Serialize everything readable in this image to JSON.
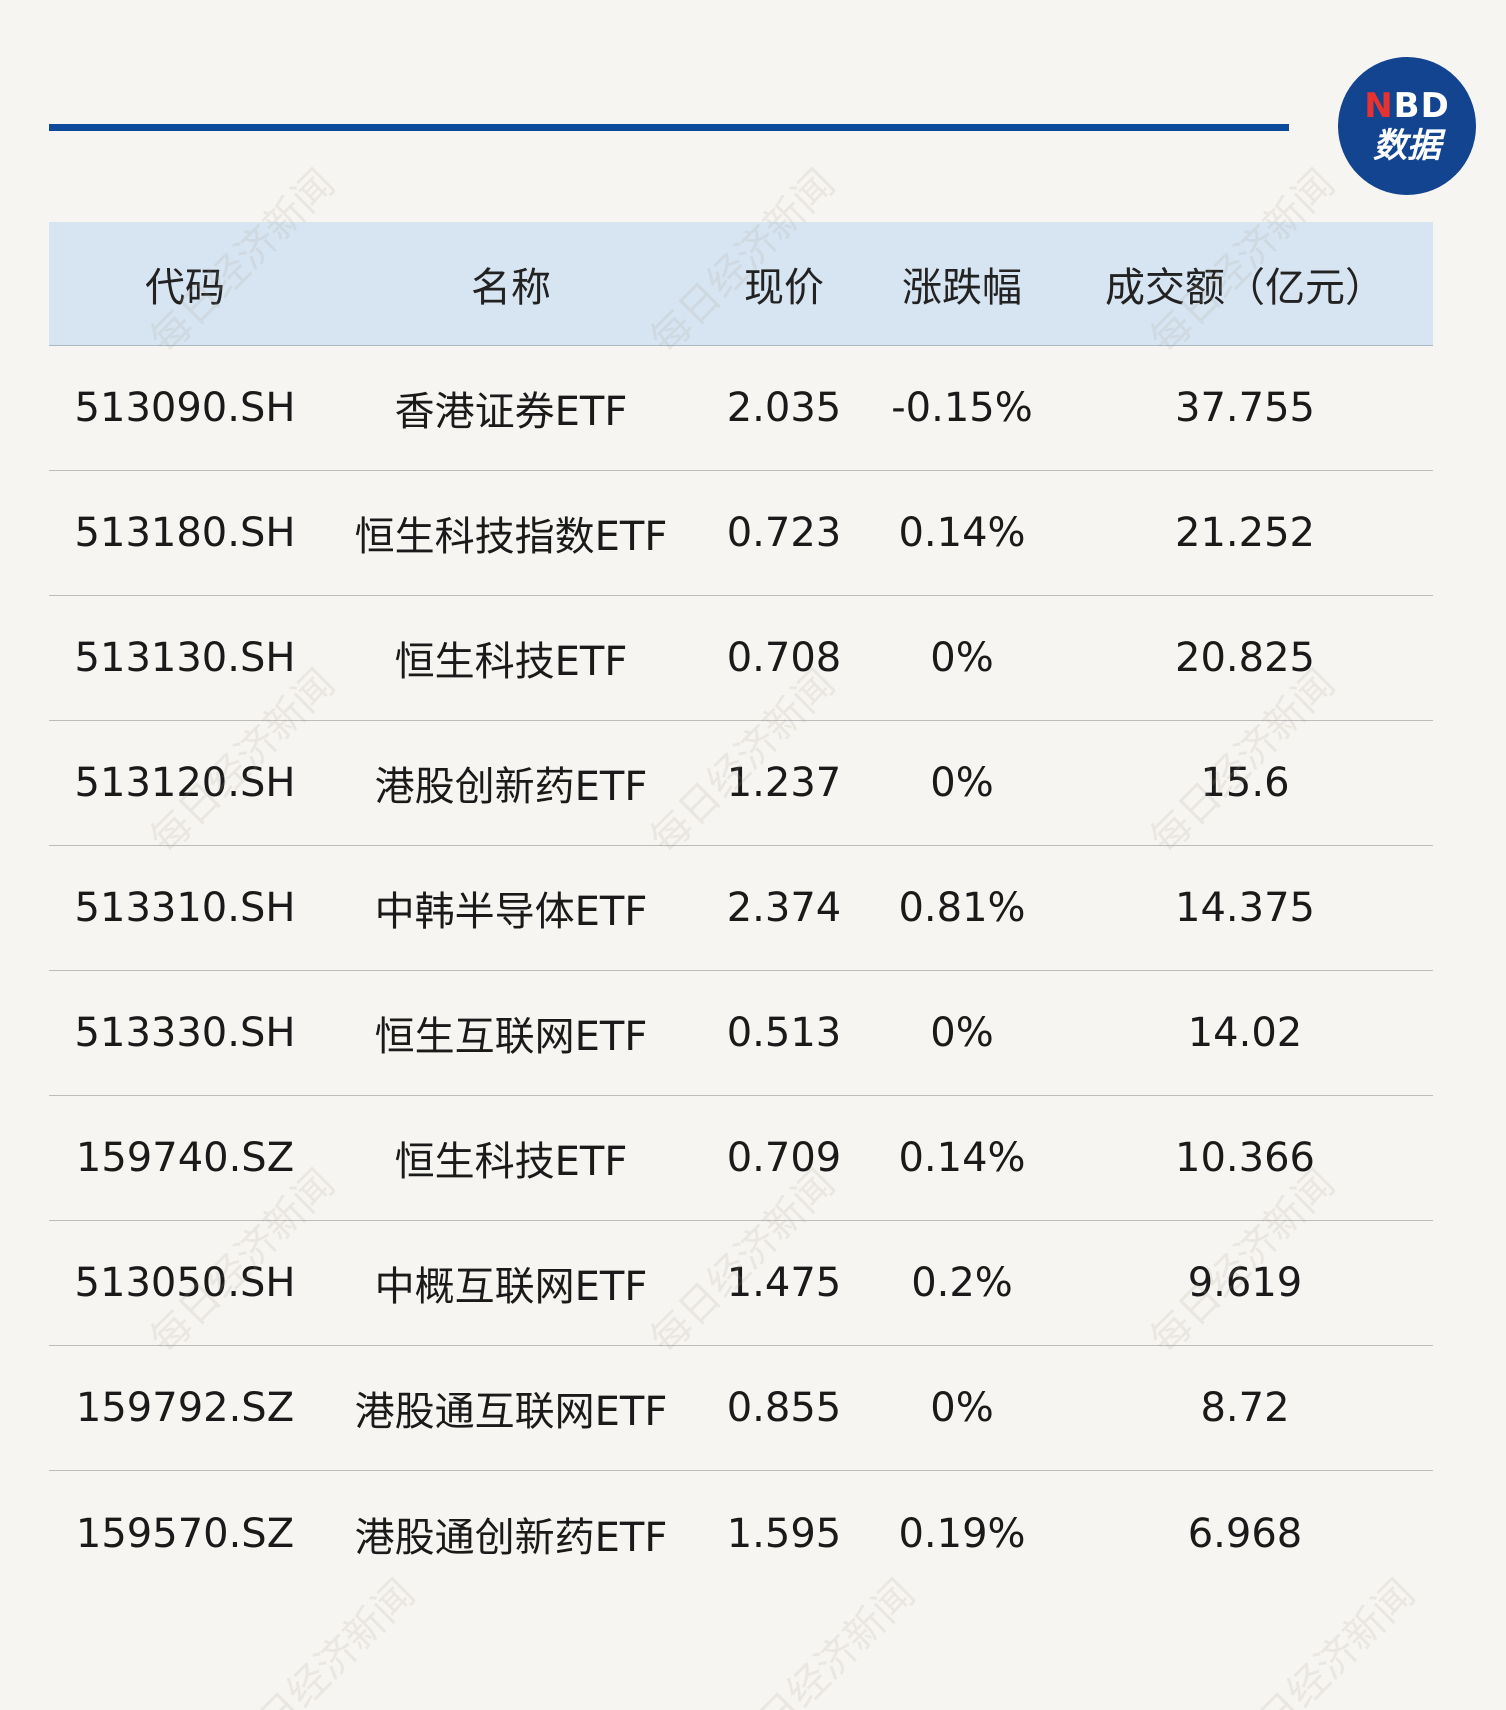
{
  "logo": {
    "mark_first": "N",
    "mark_rest": "BD",
    "subtitle": "数据"
  },
  "watermark_text": "每日经济新闻",
  "table": {
    "headers": [
      "代码",
      "名称",
      "现价",
      "涨跌幅",
      "成交额（亿元）"
    ],
    "rows": [
      [
        "513090.SH",
        "香港证券ETF",
        "2.035",
        "-0.15%",
        "37.755"
      ],
      [
        "513180.SH",
        "恒生科技指数ETF",
        "0.723",
        "0.14%",
        "21.252"
      ],
      [
        "513130.SH",
        "恒生科技ETF",
        "0.708",
        "0%",
        "20.825"
      ],
      [
        "513120.SH",
        "港股创新药ETF",
        "1.237",
        "0%",
        "15.6"
      ],
      [
        "513310.SH",
        "中韩半导体ETF",
        "2.374",
        "0.81%",
        "14.375"
      ],
      [
        "513330.SH",
        "恒生互联网ETF",
        "0.513",
        "0%",
        "14.02"
      ],
      [
        "159740.SZ",
        "恒生科技ETF",
        "0.709",
        "0.14%",
        "10.366"
      ],
      [
        "513050.SH",
        "中概互联网ETF",
        "1.475",
        "0.2%",
        "9.619"
      ],
      [
        "159792.SZ",
        "港股通互联网ETF",
        "0.855",
        "0%",
        "8.72"
      ],
      [
        "159570.SZ",
        "港股通创新药ETF",
        "1.595",
        "0.19%",
        "6.968"
      ]
    ]
  },
  "colors": {
    "accent_blue": "#0d4a9b",
    "header_bg": "#d7e4f1",
    "logo_red": "#e8322f",
    "page_bg": "#f7f5f1"
  }
}
